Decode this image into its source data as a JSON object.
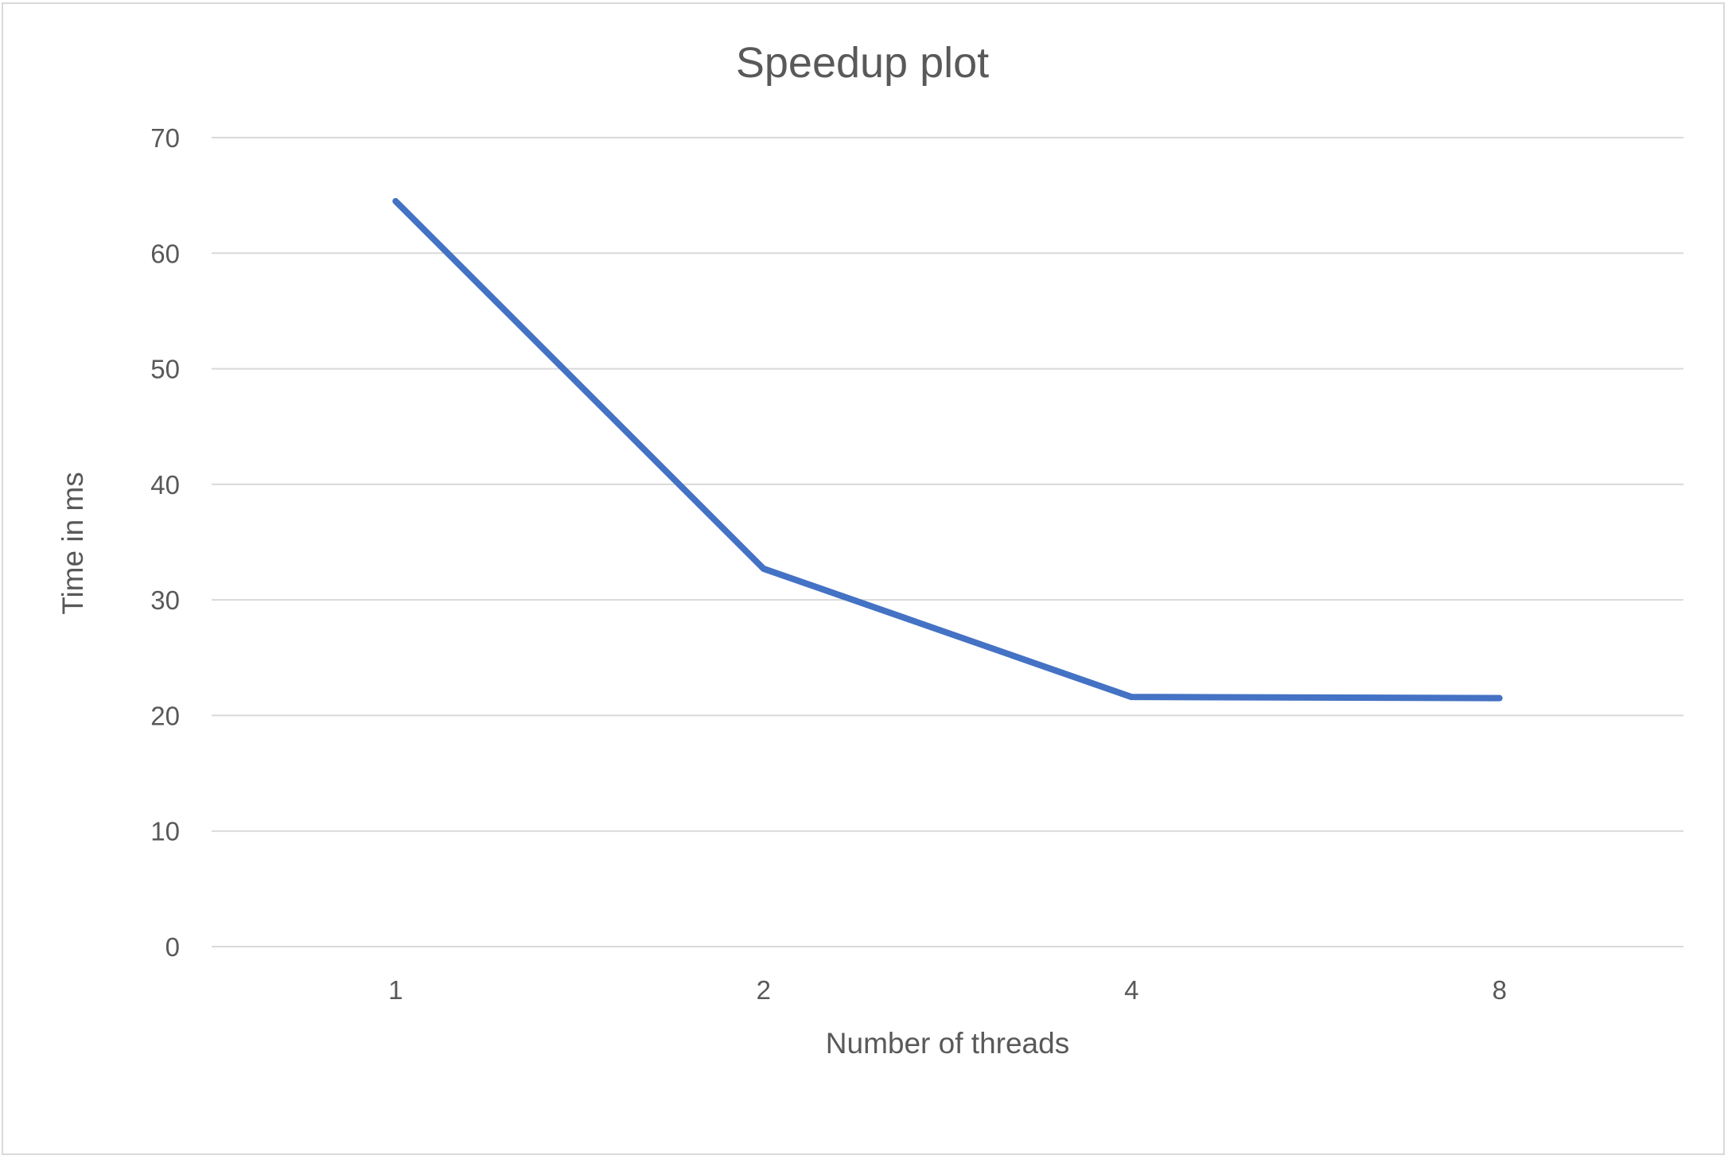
{
  "chart_data": {
    "type": "line",
    "title": "Speedup plot",
    "xlabel": "Number of threads",
    "ylabel": "Time in ms",
    "categories": [
      "1",
      "2",
      "4",
      "8"
    ],
    "series": [
      {
        "values": [
          64.5,
          32.7,
          21.6,
          21.5
        ],
        "color": "#4472c4"
      }
    ],
    "ylim": [
      0,
      70
    ],
    "yticks": [
      0,
      10,
      20,
      30,
      40,
      50,
      60,
      70
    ],
    "grid": true,
    "legend": "none"
  }
}
